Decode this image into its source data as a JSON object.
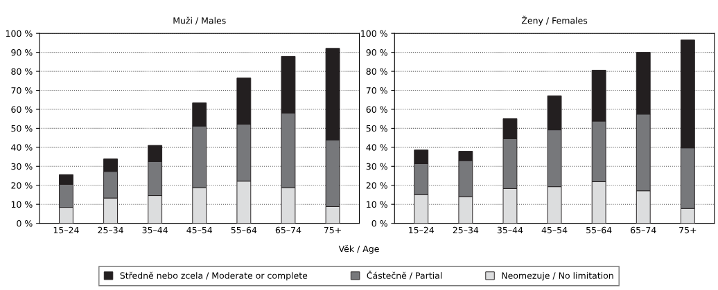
{
  "chart_data": [
    {
      "type": "bar",
      "title": "Muži / Males",
      "xlabel": "Věk / Age",
      "stacked": true,
      "legend": "bottom",
      "grid": "y",
      "line_style": "dotted",
      "categories": [
        "15–24",
        "25–34",
        "35–44",
        "45–54",
        "55–64",
        "65–74",
        "75+"
      ],
      "ylim": [
        0,
        100
      ],
      "yticks": [
        {
          "value": 0,
          "label": "0 %"
        },
        {
          "value": 10,
          "label": "10 %"
        },
        {
          "value": 20,
          "label": "20 %"
        },
        {
          "value": 30,
          "label": "30 %"
        },
        {
          "value": 40,
          "label": "40 %"
        },
        {
          "value": 50,
          "label": "50 %"
        },
        {
          "value": 60,
          "label": "60 %"
        },
        {
          "value": 70,
          "label": "70 %"
        },
        {
          "value": 80,
          "label": "80 %"
        },
        {
          "value": 90,
          "label": "90 %"
        },
        {
          "value": 100,
          "label": "100 %"
        }
      ],
      "series": [
        {
          "name": "Neomezuje / No limitation",
          "color": "#dcddde",
          "values": [
            8.4,
            13.3,
            14.6,
            18.7,
            22.2,
            18.7,
            8.8
          ]
        },
        {
          "name": "Částečně / Partial",
          "color": "#77787b",
          "values": [
            12.1,
            14.0,
            17.9,
            32.5,
            30.0,
            39.3,
            35.1
          ]
        },
        {
          "name": "Středně nebo zcela / Moderate or complete",
          "color": "#231f20",
          "values": [
            5.1,
            6.6,
            8.5,
            12.2,
            24.3,
            29.9,
            48.2
          ]
        }
      ]
    },
    {
      "type": "bar",
      "title": "Ženy / Females",
      "stacked": true,
      "grid": "y",
      "line_style": "dotted",
      "categories": [
        "15–24",
        "25–34",
        "35–44",
        "45–54",
        "55–64",
        "65–74",
        "75+"
      ],
      "ylim": [
        0,
        100
      ],
      "yticks": [
        {
          "value": 0,
          "label": "0 %"
        },
        {
          "value": 10,
          "label": "10 %"
        },
        {
          "value": 20,
          "label": "20 %"
        },
        {
          "value": 30,
          "label": "30 %"
        },
        {
          "value": 40,
          "label": "40 %"
        },
        {
          "value": 50,
          "label": "50 %"
        },
        {
          "value": 60,
          "label": "60 %"
        },
        {
          "value": 70,
          "label": "70 %"
        },
        {
          "value": 80,
          "label": "80 %"
        },
        {
          "value": 90,
          "label": "90 %"
        },
        {
          "value": 100,
          "label": "100 %"
        }
      ],
      "series": [
        {
          "color": "#dcddde",
          "values": [
            15.1,
            14.0,
            18.3,
            19.3,
            21.9,
            17.1,
            7.8
          ]
        },
        {
          "color": "#77787b",
          "values": [
            16.3,
            19.0,
            26.2,
            29.9,
            31.9,
            40.4,
            31.9
          ]
        },
        {
          "color": "#231f20",
          "values": [
            7.2,
            4.9,
            10.6,
            17.9,
            26.8,
            32.5,
            56.8
          ]
        }
      ]
    }
  ]
}
